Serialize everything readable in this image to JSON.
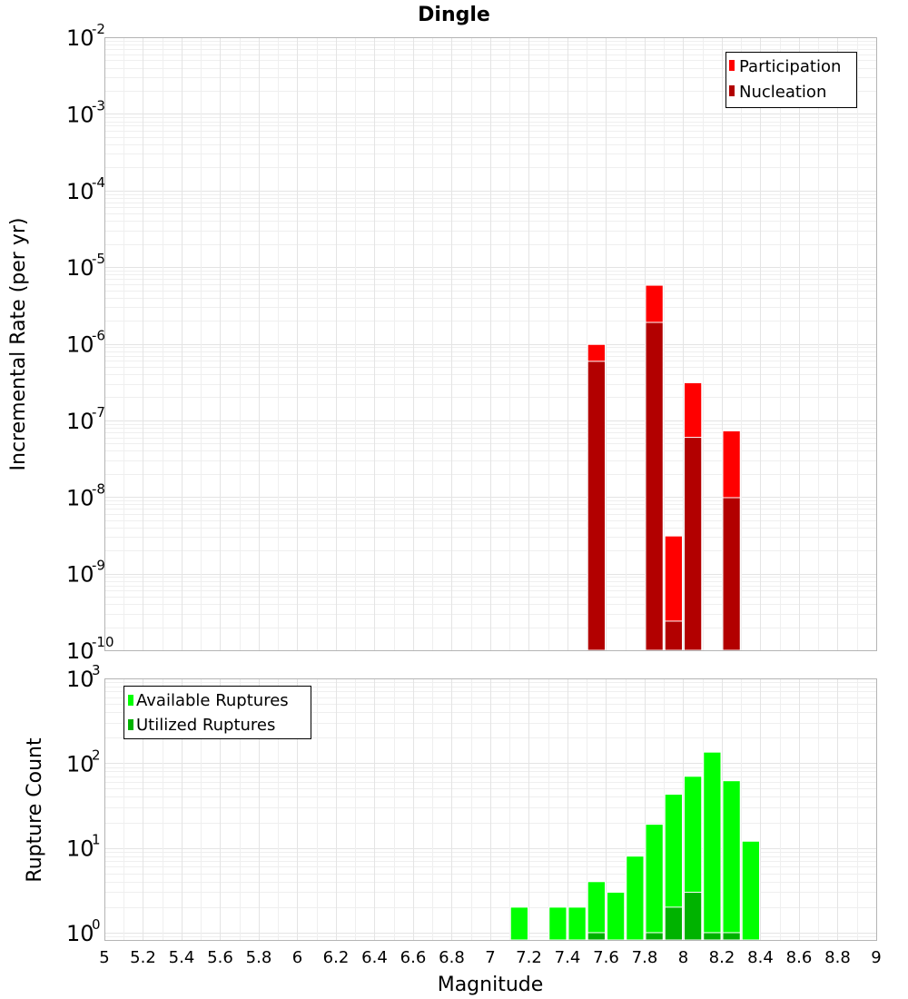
{
  "title": "Dingle",
  "xlabel": "Magnitude",
  "x_ticks": [
    "5",
    "5.2",
    "5.4",
    "5.6",
    "5.8",
    "6",
    "6.2",
    "6.4",
    "6.6",
    "6.8",
    "7",
    "7.2",
    "7.4",
    "7.6",
    "7.8",
    "8",
    "8.2",
    "8.4",
    "8.6",
    "8.8",
    "9"
  ],
  "chart_data": [
    {
      "type": "bar",
      "yscale": "log",
      "ylabel": "Incremental Rate (per yr)",
      "xlim": [
        5,
        9
      ],
      "ylim": [
        1e-10,
        0.01
      ],
      "y_tick_exponents": [
        "-10",
        "-9",
        "-8",
        "-7",
        "-6",
        "-5",
        "-4",
        "-3",
        "-2"
      ],
      "bar_width": 0.1,
      "legend_position": "top-right",
      "series": [
        {
          "name": "Participation",
          "color": "#ff0000",
          "points": [
            {
              "x": 7.55,
              "y": 9.8e-07
            },
            {
              "x": 7.85,
              "y": 5.8e-06
            },
            {
              "x": 7.95,
              "y": 3.1e-09
            },
            {
              "x": 8.05,
              "y": 3.1e-07
            },
            {
              "x": 8.25,
              "y": 7.3e-08
            }
          ]
        },
        {
          "name": "Nucleation",
          "color": "#b20000",
          "points": [
            {
              "x": 7.55,
              "y": 5.9e-07
            },
            {
              "x": 7.85,
              "y": 1.9e-06
            },
            {
              "x": 7.95,
              "y": 2.4e-10
            },
            {
              "x": 8.05,
              "y": 6e-08
            },
            {
              "x": 8.25,
              "y": 9.8e-09
            }
          ]
        }
      ]
    },
    {
      "type": "bar",
      "yscale": "log",
      "ylabel": "Rupture Count",
      "xlim": [
        5,
        9
      ],
      "ylim": [
        0.82,
        1000
      ],
      "y_tick_exponents": [
        "0",
        "1",
        "2",
        "3"
      ],
      "bar_width": 0.1,
      "legend_position": "top-left",
      "series": [
        {
          "name": "Available Ruptures",
          "color": "#00ff00",
          "points": [
            {
              "x": 7.15,
              "y": 2
            },
            {
              "x": 7.35,
              "y": 2
            },
            {
              "x": 7.45,
              "y": 2
            },
            {
              "x": 7.55,
              "y": 4
            },
            {
              "x": 7.65,
              "y": 3
            },
            {
              "x": 7.75,
              "y": 8
            },
            {
              "x": 7.85,
              "y": 19
            },
            {
              "x": 7.95,
              "y": 43
            },
            {
              "x": 8.05,
              "y": 70
            },
            {
              "x": 8.15,
              "y": 135
            },
            {
              "x": 8.25,
              "y": 62
            },
            {
              "x": 8.35,
              "y": 12
            }
          ]
        },
        {
          "name": "Utilized Ruptures",
          "color": "#00b200",
          "points": [
            {
              "x": 7.55,
              "y": 1
            },
            {
              "x": 7.85,
              "y": 1
            },
            {
              "x": 7.95,
              "y": 2
            },
            {
              "x": 8.05,
              "y": 3
            },
            {
              "x": 8.15,
              "y": 1
            },
            {
              "x": 8.25,
              "y": 1
            }
          ]
        }
      ]
    }
  ]
}
